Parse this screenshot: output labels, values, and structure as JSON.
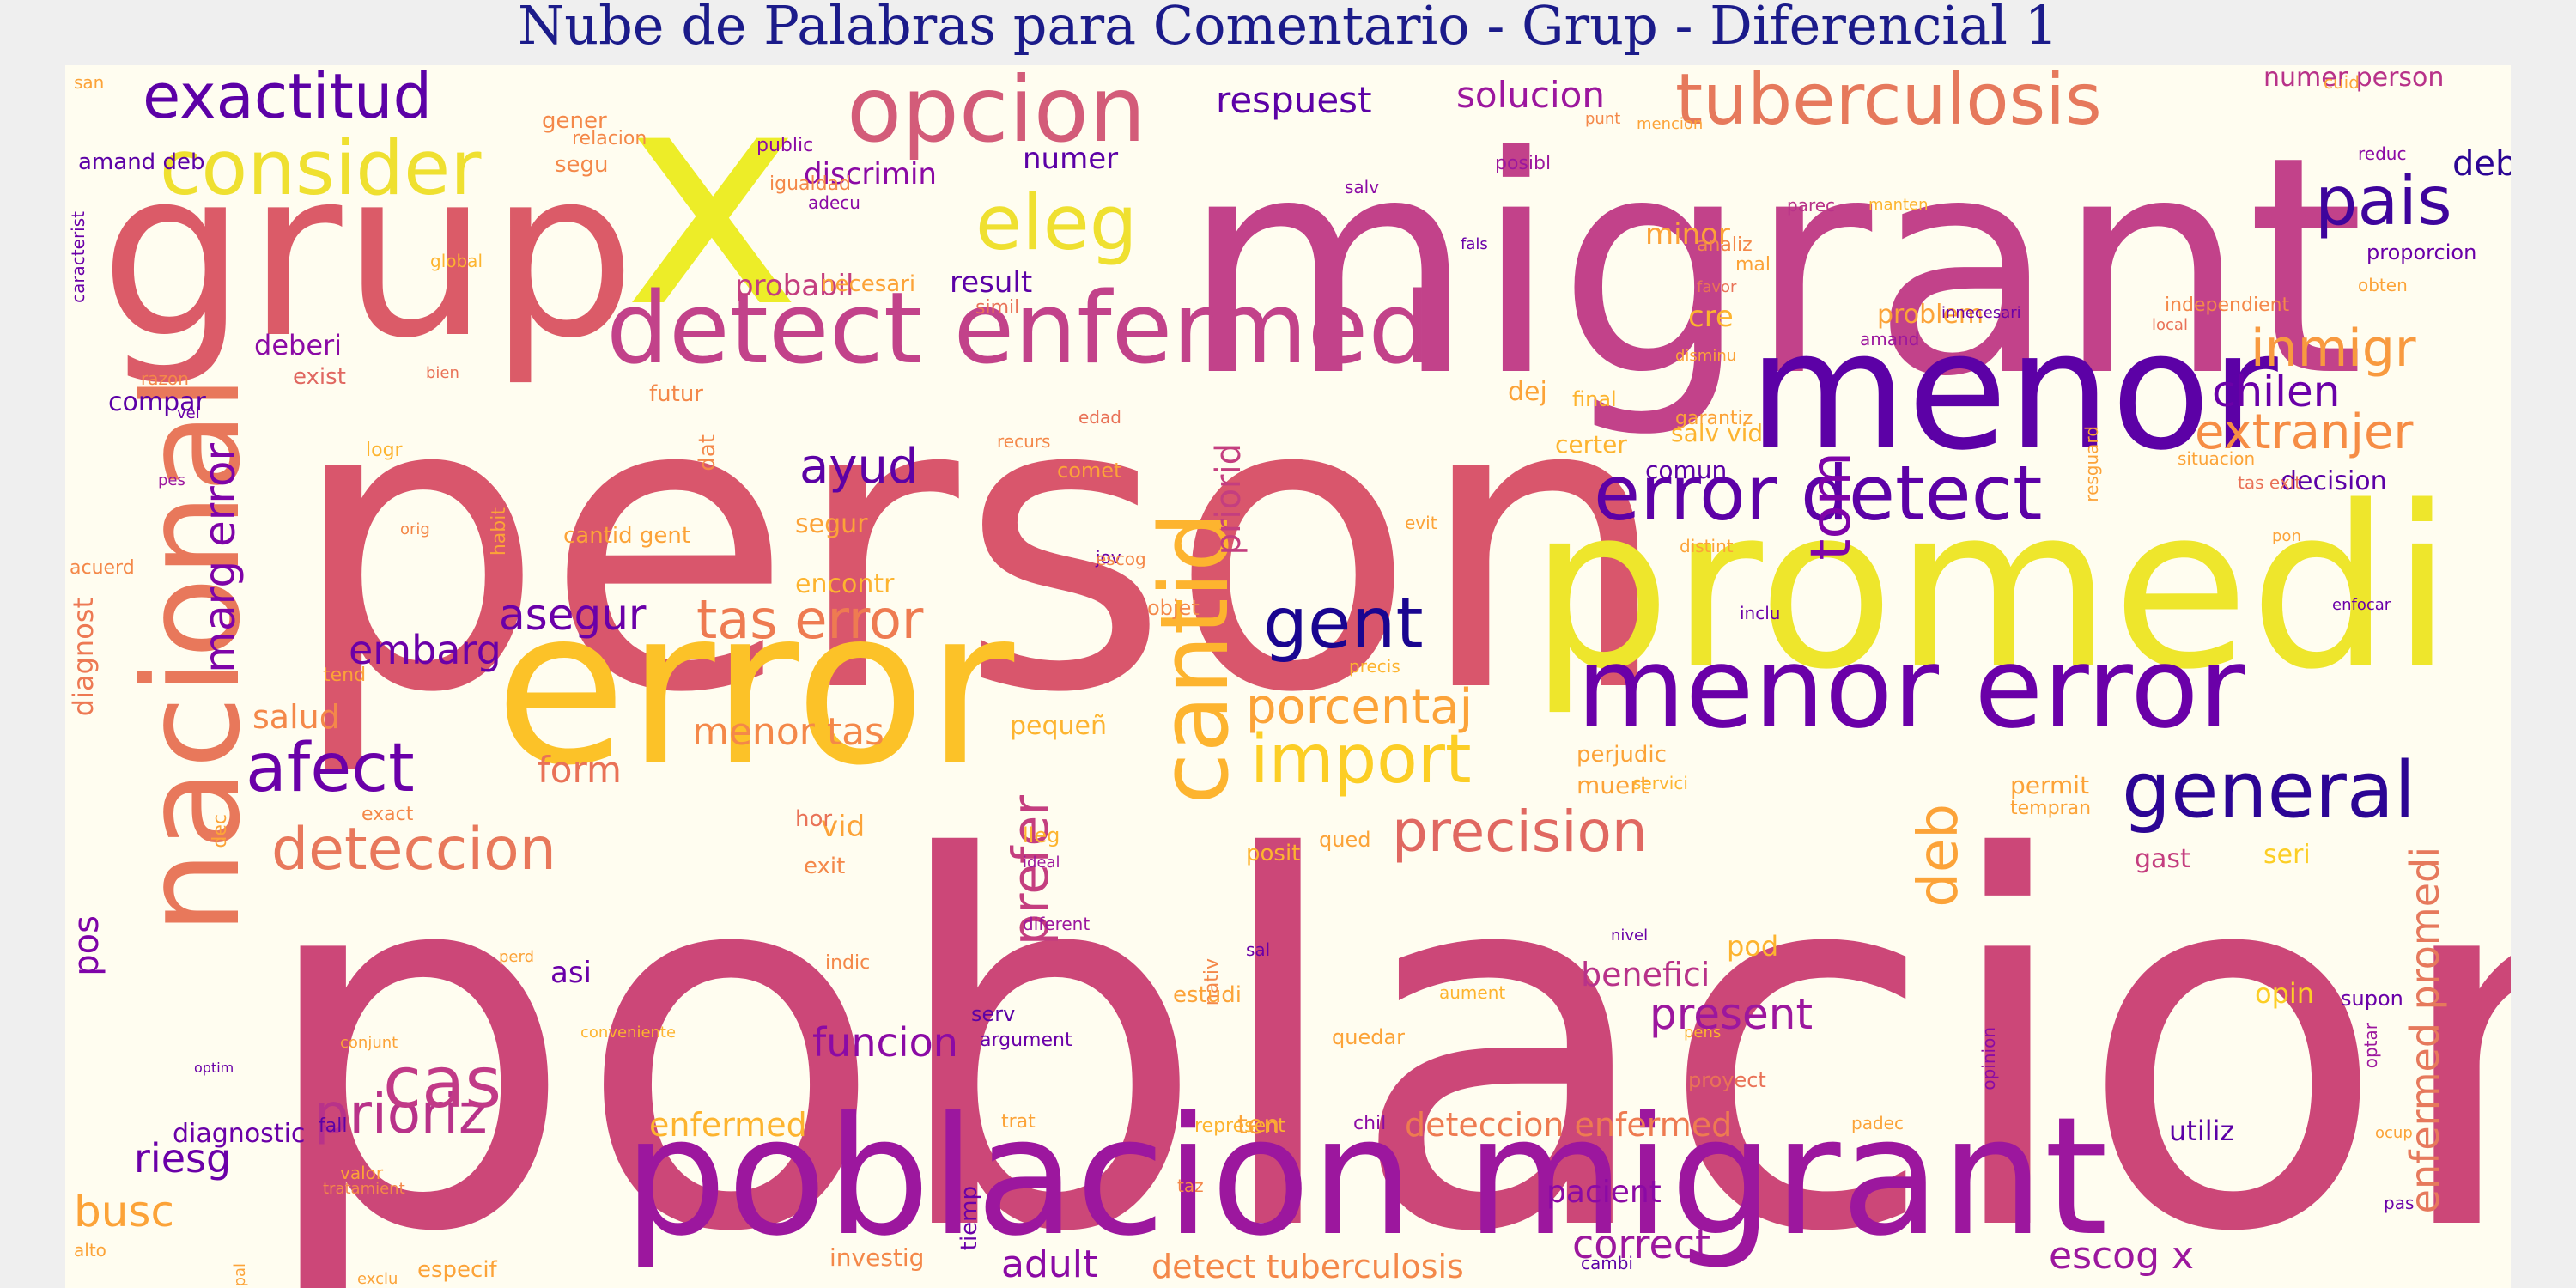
{
  "title": "Nube de Palabras para Comentario - Grup - Diferencial 1",
  "colors": {
    "page_background": "#efefef",
    "cloud_background": "#fffdf0",
    "title": "#1b1b8a",
    "palette": [
      "#0d0887",
      "#5c01a6",
      "#9c179e",
      "#cc4778",
      "#ed7953",
      "#fdb42f",
      "#f0f921"
    ]
  },
  "words": [
    {
      "text": "poblacion",
      "color": "#cc4778"
    },
    {
      "text": "person",
      "color": "#d9566c"
    },
    {
      "text": "migrant",
      "color": "#c2428a"
    },
    {
      "text": "x",
      "color": "#eded28"
    },
    {
      "text": "grup",
      "color": "#db5b68"
    },
    {
      "text": "promedi",
      "color": "#eee62c"
    },
    {
      "text": "error",
      "color": "#fcc228"
    },
    {
      "text": "menor",
      "color": "#5c01a6"
    },
    {
      "text": "poblacion migrant",
      "color": "#9c179e"
    },
    {
      "text": "menor error",
      "color": "#6a00a8"
    },
    {
      "text": "nacional",
      "color": "#e8785b"
    },
    {
      "text": "detect enfermed",
      "color": "#c2428a"
    },
    {
      "text": "opcion",
      "color": "#d35c79"
    },
    {
      "text": "tuberculosis",
      "color": "#e6795c"
    },
    {
      "text": "consider",
      "color": "#efe030"
    },
    {
      "text": "exactitud",
      "color": "#5c01a6"
    },
    {
      "text": "eleg",
      "color": "#efe030"
    },
    {
      "text": "pais",
      "color": "#3e049c"
    },
    {
      "text": "error detect",
      "color": "#5c01a6"
    },
    {
      "text": "general",
      "color": "#2c0594"
    },
    {
      "text": "cantid",
      "color": "#fdb42f"
    },
    {
      "text": "gent",
      "color": "#1a0590"
    },
    {
      "text": "import",
      "color": "#fcce25"
    },
    {
      "text": "afect",
      "color": "#6a00a8"
    },
    {
      "text": "deteccion",
      "color": "#e8785b"
    },
    {
      "text": "precision",
      "color": "#e06861"
    },
    {
      "text": "prioriz",
      "color": "#b83289"
    },
    {
      "text": "cas",
      "color": "#c13a87"
    },
    {
      "text": "inmigr",
      "color": "#f89a3f"
    },
    {
      "text": "extranjer",
      "color": "#f68d45"
    },
    {
      "text": "chilen",
      "color": "#6a00a8"
    },
    {
      "text": "tom",
      "color": "#7e03a8"
    },
    {
      "text": "tas error",
      "color": "#ee7b51"
    },
    {
      "text": "porcentaj",
      "color": "#fca338"
    },
    {
      "text": "deb",
      "color": "#fca338"
    },
    {
      "text": "prefer",
      "color": "#c43e7f"
    },
    {
      "text": "marg error",
      "color": "#7e03a8"
    },
    {
      "text": "enfermed promedi",
      "color": "#e6795c"
    },
    {
      "text": "ayud",
      "color": "#5c01a6"
    },
    {
      "text": "asegur",
      "color": "#6a00a8"
    },
    {
      "text": "embarg",
      "color": "#6a00a8"
    },
    {
      "text": "respuest",
      "color": "#5c01a6"
    },
    {
      "text": "solucion",
      "color": "#9c179e"
    },
    {
      "text": "correct",
      "color": "#9c179e"
    },
    {
      "text": "adult",
      "color": "#8b0aa5"
    },
    {
      "text": "escog x",
      "color": "#9c179e"
    },
    {
      "text": "pacient",
      "color": "#8b0aa5"
    },
    {
      "text": "present",
      "color": "#9c179e"
    },
    {
      "text": "benefici",
      "color": "#b83289"
    },
    {
      "text": "deteccion enfermed",
      "color": "#ee7b51"
    },
    {
      "text": "detect tuberculosis",
      "color": "#f48849"
    },
    {
      "text": "enfermed",
      "color": "#fdb42f"
    },
    {
      "text": "funcion",
      "color": "#8b0aa5"
    },
    {
      "text": "asi",
      "color": "#6a00a8"
    },
    {
      "text": "busc",
      "color": "#fca338"
    },
    {
      "text": "riesg",
      "color": "#6a00a8"
    },
    {
      "text": "pos",
      "color": "#7e03a8"
    },
    {
      "text": "diagnost",
      "color": "#ed7953"
    },
    {
      "text": "salud",
      "color": "#f48849"
    },
    {
      "text": "menor tas",
      "color": "#f48849"
    },
    {
      "text": "form",
      "color": "#e97257"
    },
    {
      "text": "deberi",
      "color": "#8b0aa5"
    },
    {
      "text": "discrimin",
      "color": "#8b0aa5"
    },
    {
      "text": "numer",
      "color": "#5c01a6"
    },
    {
      "text": "result",
      "color": "#5c01a6"
    },
    {
      "text": "probabil",
      "color": "#c43e7f"
    },
    {
      "text": "minor",
      "color": "#fca338"
    },
    {
      "text": "cre",
      "color": "#fdb42f"
    },
    {
      "text": "problem",
      "color": "#fca338"
    },
    {
      "text": "deb escog",
      "color": "#2c0594"
    },
    {
      "text": "dej",
      "color": "#fca338"
    },
    {
      "text": "priorid",
      "color": "#c43e7f"
    },
    {
      "text": "vid",
      "color": "#fca338"
    },
    {
      "text": "pequeñ",
      "color": "#fdb42f"
    },
    {
      "text": "hor",
      "color": "#e97257"
    },
    {
      "text": "decision",
      "color": "#5c01a6"
    },
    {
      "text": "numer person",
      "color": "#b83289"
    },
    {
      "text": "seri",
      "color": "#fcce25"
    },
    {
      "text": "gast",
      "color": "#c43e7f"
    },
    {
      "text": "opin",
      "color": "#fcce25"
    },
    {
      "text": "pod",
      "color": "#fdb42f"
    },
    {
      "text": "utiliz",
      "color": "#5c01a6"
    },
    {
      "text": "certer",
      "color": "#fdb42f"
    },
    {
      "text": "comun",
      "color": "#5c01a6"
    },
    {
      "text": "salv vid",
      "color": "#fdb42f"
    },
    {
      "text": "final",
      "color": "#fdb42f"
    },
    {
      "text": "compar",
      "color": "#5c01a6"
    },
    {
      "text": "exist",
      "color": "#e06861"
    },
    {
      "text": "encontr",
      "color": "#fdb42f"
    },
    {
      "text": "segur",
      "color": "#fca338"
    },
    {
      "text": "cantid gent",
      "color": "#fca338"
    },
    {
      "text": "amand deb",
      "color": "#5c01a6"
    },
    {
      "text": "segu",
      "color": "#f48849"
    },
    {
      "text": "gener",
      "color": "#f48849"
    },
    {
      "text": "relacion",
      "color": "#f48849"
    },
    {
      "text": "public",
      "color": "#8b0aa5"
    },
    {
      "text": "igualdad",
      "color": "#f48849"
    },
    {
      "text": "adecu",
      "color": "#8b0aa5"
    },
    {
      "text": "necesari",
      "color": "#fca338"
    },
    {
      "text": "caracterist",
      "color": "#6a00a8"
    },
    {
      "text": "simil",
      "color": "#e97257"
    },
    {
      "text": "salv",
      "color": "#8b0aa5"
    },
    {
      "text": "posibl",
      "color": "#9c179e"
    },
    {
      "text": "punt",
      "color": "#f48849"
    },
    {
      "text": "mencion",
      "color": "#fca338"
    },
    {
      "text": "fals",
      "color": "#6a00a8"
    },
    {
      "text": "analiz",
      "color": "#f48849"
    },
    {
      "text": "mal",
      "color": "#fca338"
    },
    {
      "text": "parec",
      "color": "#b83289"
    },
    {
      "text": "manten",
      "color": "#fdb42f"
    },
    {
      "text": "cuid",
      "color": "#fca338"
    },
    {
      "text": "reduc",
      "color": "#8b0aa5"
    },
    {
      "text": "proporcion",
      "color": "#6a00a8"
    },
    {
      "text": "obten",
      "color": "#fca338"
    },
    {
      "text": "independient",
      "color": "#f48849"
    },
    {
      "text": "local",
      "color": "#e97257"
    },
    {
      "text": "amand",
      "color": "#9c179e"
    },
    {
      "text": "innecesari",
      "color": "#6a00a8"
    },
    {
      "text": "disminu",
      "color": "#fca338"
    },
    {
      "text": "garantiz",
      "color": "#fca338"
    },
    {
      "text": "situacion",
      "color": "#fca338"
    },
    {
      "text": "tas exit",
      "color": "#e97257"
    },
    {
      "text": "pon",
      "color": "#fca338"
    },
    {
      "text": "distint",
      "color": "#fca338"
    },
    {
      "text": "evit",
      "color": "#fca338"
    },
    {
      "text": "jov",
      "color": "#6a00a8"
    },
    {
      "text": "escog",
      "color": "#f48849"
    },
    {
      "text": "inclu",
      "color": "#6a00a8"
    },
    {
      "text": "enfocar",
      "color": "#6a00a8"
    },
    {
      "text": "objet",
      "color": "#f48849"
    },
    {
      "text": "precis",
      "color": "#fdb42f"
    },
    {
      "text": "perjudic",
      "color": "#fca338"
    },
    {
      "text": "muert",
      "color": "#fca338"
    },
    {
      "text": "permit",
      "color": "#fca338"
    },
    {
      "text": "tempran",
      "color": "#fca338"
    },
    {
      "text": "servici",
      "color": "#fdb42f"
    },
    {
      "text": "qued",
      "color": "#fca338"
    },
    {
      "text": "lleg",
      "color": "#fdb42f"
    },
    {
      "text": "ideal",
      "color": "#9c179e"
    },
    {
      "text": "exit",
      "color": "#f48849"
    },
    {
      "text": "diferent",
      "color": "#9c179e"
    },
    {
      "text": "posit",
      "color": "#fdb42f"
    },
    {
      "text": "sal",
      "color": "#6a00a8"
    },
    {
      "text": "nivel",
      "color": "#6a00a8"
    },
    {
      "text": "aument",
      "color": "#fdb42f"
    },
    {
      "text": "nativ",
      "color": "#f48849"
    },
    {
      "text": "estudi",
      "color": "#fca338"
    },
    {
      "text": "serv",
      "color": "#5c01a6"
    },
    {
      "text": "argument",
      "color": "#6a00a8"
    },
    {
      "text": "indic",
      "color": "#f48849"
    },
    {
      "text": "perd",
      "color": "#fca338"
    },
    {
      "text": "quedar",
      "color": "#fca338"
    },
    {
      "text": "pens",
      "color": "#fdb42f"
    },
    {
      "text": "proyect",
      "color": "#e97257"
    },
    {
      "text": "supon",
      "color": "#6a00a8"
    },
    {
      "text": "optar",
      "color": "#9c179e"
    },
    {
      "text": "opinion",
      "color": "#8b0aa5"
    },
    {
      "text": "diagnostic",
      "color": "#6a00a8"
    },
    {
      "text": "fall",
      "color": "#5c01a6"
    },
    {
      "text": "valor",
      "color": "#fca338"
    },
    {
      "text": "tratamient",
      "color": "#f48849"
    },
    {
      "text": "principal",
      "color": "#fca338"
    },
    {
      "text": "especif",
      "color": "#fca338"
    },
    {
      "text": "alto",
      "color": "#fca338"
    },
    {
      "text": "exclu",
      "color": "#fca338"
    },
    {
      "text": "conveniente",
      "color": "#fdb42f"
    },
    {
      "text": "conjunt",
      "color": "#fca338"
    },
    {
      "text": "optim",
      "color": "#6a00a8"
    },
    {
      "text": "trat",
      "color": "#fca338"
    },
    {
      "text": "represent",
      "color": "#fdb42f"
    },
    {
      "text": "ten",
      "color": "#fca338"
    },
    {
      "text": "chil",
      "color": "#8b0aa5"
    },
    {
      "text": "padec",
      "color": "#fca338"
    },
    {
      "text": "tiemp",
      "color": "#6a00a8"
    },
    {
      "text": "taz",
      "color": "#f48849"
    },
    {
      "text": "investig",
      "color": "#f48849"
    },
    {
      "text": "cambi",
      "color": "#5c01a6"
    },
    {
      "text": "ocup",
      "color": "#fca338"
    },
    {
      "text": "pas",
      "color": "#6a00a8"
    },
    {
      "text": "comet",
      "color": "#fca338"
    },
    {
      "text": "recurs",
      "color": "#f48849"
    },
    {
      "text": "edad",
      "color": "#e97257"
    },
    {
      "text": "futur",
      "color": "#f48849"
    },
    {
      "text": "dat",
      "color": "#f48849"
    },
    {
      "text": "logr",
      "color": "#fdb42f"
    },
    {
      "text": "vel",
      "color": "#6a00a8"
    },
    {
      "text": "pes",
      "color": "#9c179e"
    },
    {
      "text": "orig",
      "color": "#f48849"
    },
    {
      "text": "habit",
      "color": "#fca338"
    },
    {
      "text": "acuerd",
      "color": "#f48849"
    },
    {
      "text": "tend",
      "color": "#fca338"
    },
    {
      "text": "exact",
      "color": "#f48849"
    },
    {
      "text": "dec",
      "color": "#fca338"
    },
    {
      "text": "global",
      "color": "#fdb42f"
    },
    {
      "text": "razon",
      "color": "#f48849"
    },
    {
      "text": "bien",
      "color": "#e97257"
    },
    {
      "text": "resguard",
      "color": "#fca338"
    },
    {
      "text": "favor",
      "color": "#e97257"
    },
    {
      "text": "san",
      "color": "#fca338"
    }
  ]
}
